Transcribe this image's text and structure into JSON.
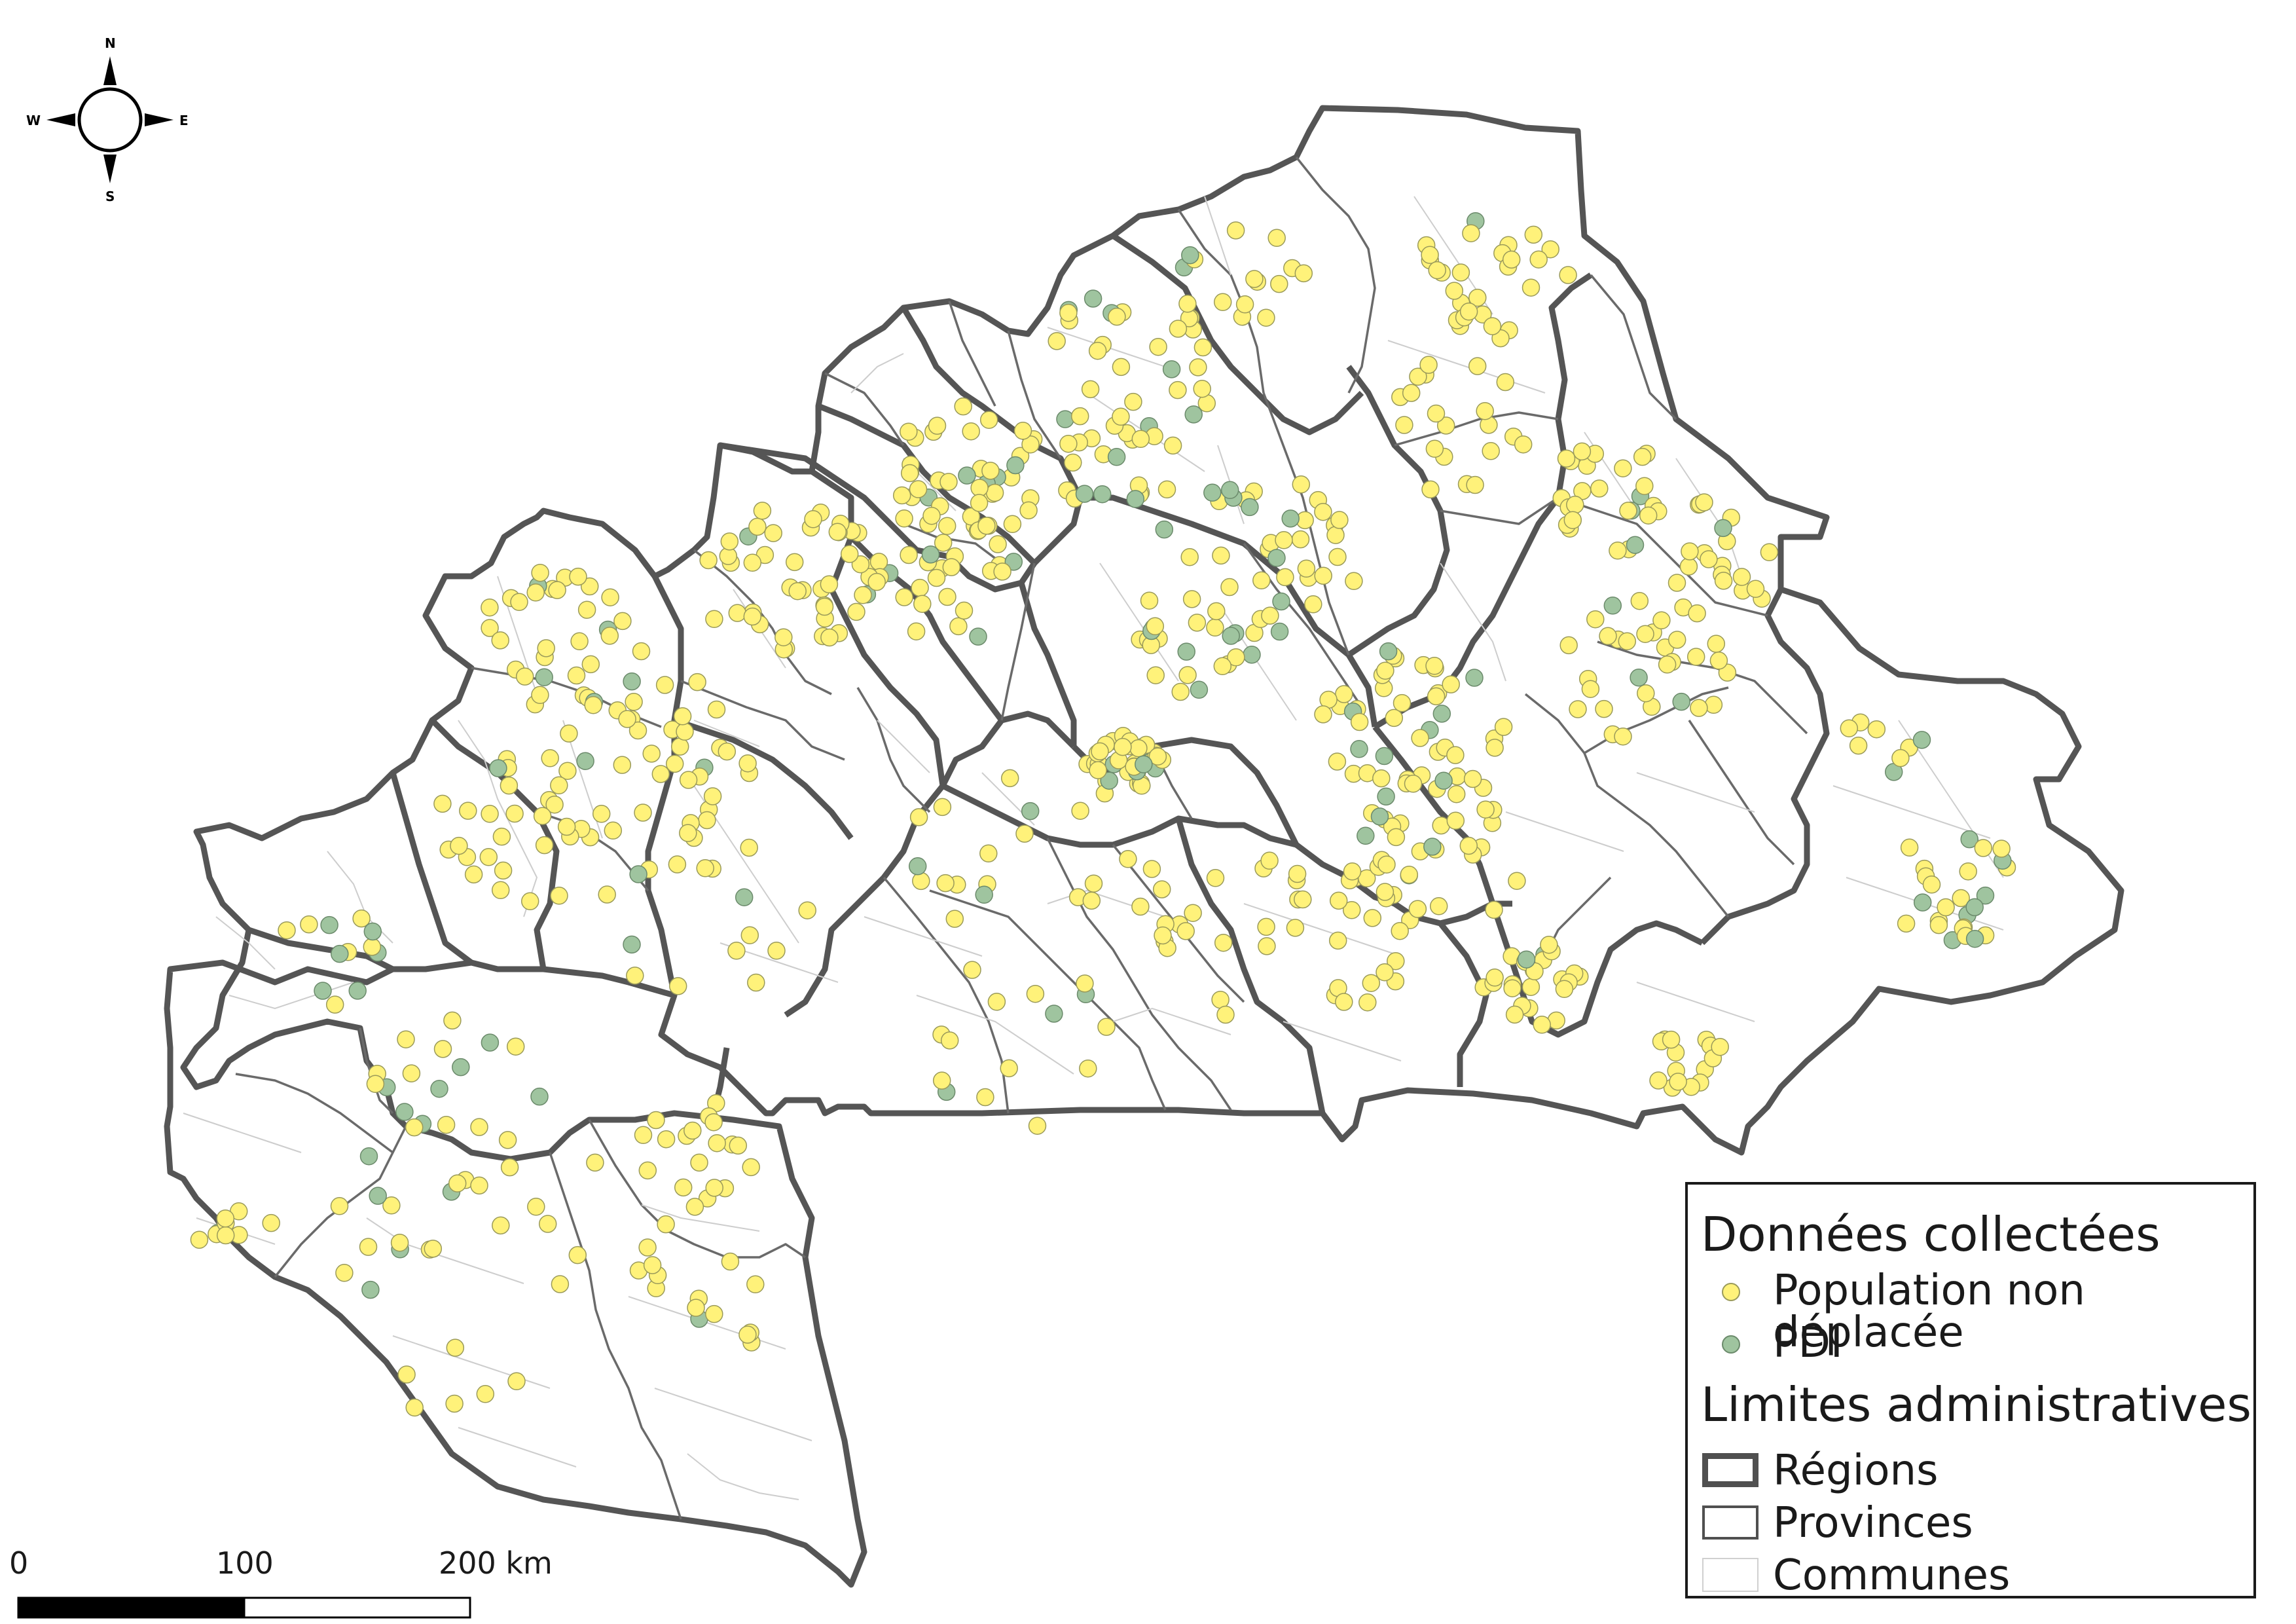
{
  "compass": {
    "north": "N",
    "south": "S",
    "east": "E",
    "west": "W"
  },
  "scale_bar": {
    "labels": [
      "0",
      "100",
      "200 km"
    ]
  },
  "legend": {
    "data_title": "Données collectées",
    "points": [
      {
        "label": "Population non déplacée",
        "color": "#fff27a",
        "stroke": "#9a9a5a"
      },
      {
        "label": "PDI",
        "color": "#9fc49f",
        "stroke": "#6b8a6b"
      }
    ],
    "boundaries_title": "Limites administratives",
    "boundaries": [
      {
        "label": "Régions",
        "style": "thick",
        "color": "#505050"
      },
      {
        "label": "Provinces",
        "style": "medium",
        "color": "#505050"
      },
      {
        "label": "Communes",
        "style": "thin",
        "color": "#cfcfcf"
      }
    ]
  }
}
